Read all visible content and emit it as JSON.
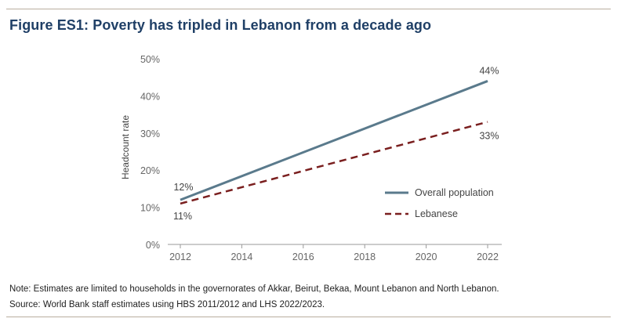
{
  "figure": {
    "title": "Figure ES1: Poverty has tripled in Lebanon from a decade ago",
    "note": "Note: Estimates are limited to households in the governorates of Akkar, Beirut, Bekaa, Mount Lebanon and North Lebanon.",
    "source": "Source: World Bank staff estimates using HBS 2011/2012 and LHS 2022/2023."
  },
  "colors": {
    "title": "#1f3f66",
    "rule": "#b9ae9f",
    "overall": "#5a7a8c",
    "lebanese": "#7a1f1f",
    "axis_text": "#666666"
  },
  "chart_data": {
    "type": "line",
    "ylabel": "Headcount rate",
    "xlabel": "",
    "ylim": [
      0,
      50
    ],
    "xlim": [
      2012,
      2022
    ],
    "x_ticks": [
      2012,
      2014,
      2016,
      2018,
      2020,
      2022
    ],
    "y_ticks": [
      0,
      10,
      20,
      30,
      40,
      50
    ],
    "y_tick_labels": [
      "0%",
      "10%",
      "20%",
      "30%",
      "40%",
      "50%"
    ],
    "grid": false,
    "legend_position": "bottom-right",
    "series": [
      {
        "name": "Overall population",
        "x": [
          2012,
          2022
        ],
        "values": [
          12,
          44
        ],
        "labels": [
          "12%",
          "44%"
        ],
        "style": "solid"
      },
      {
        "name": "Lebanese",
        "x": [
          2012,
          2022
        ],
        "values": [
          11,
          33
        ],
        "labels": [
          "11%",
          "33%"
        ],
        "style": "dashed"
      }
    ]
  }
}
